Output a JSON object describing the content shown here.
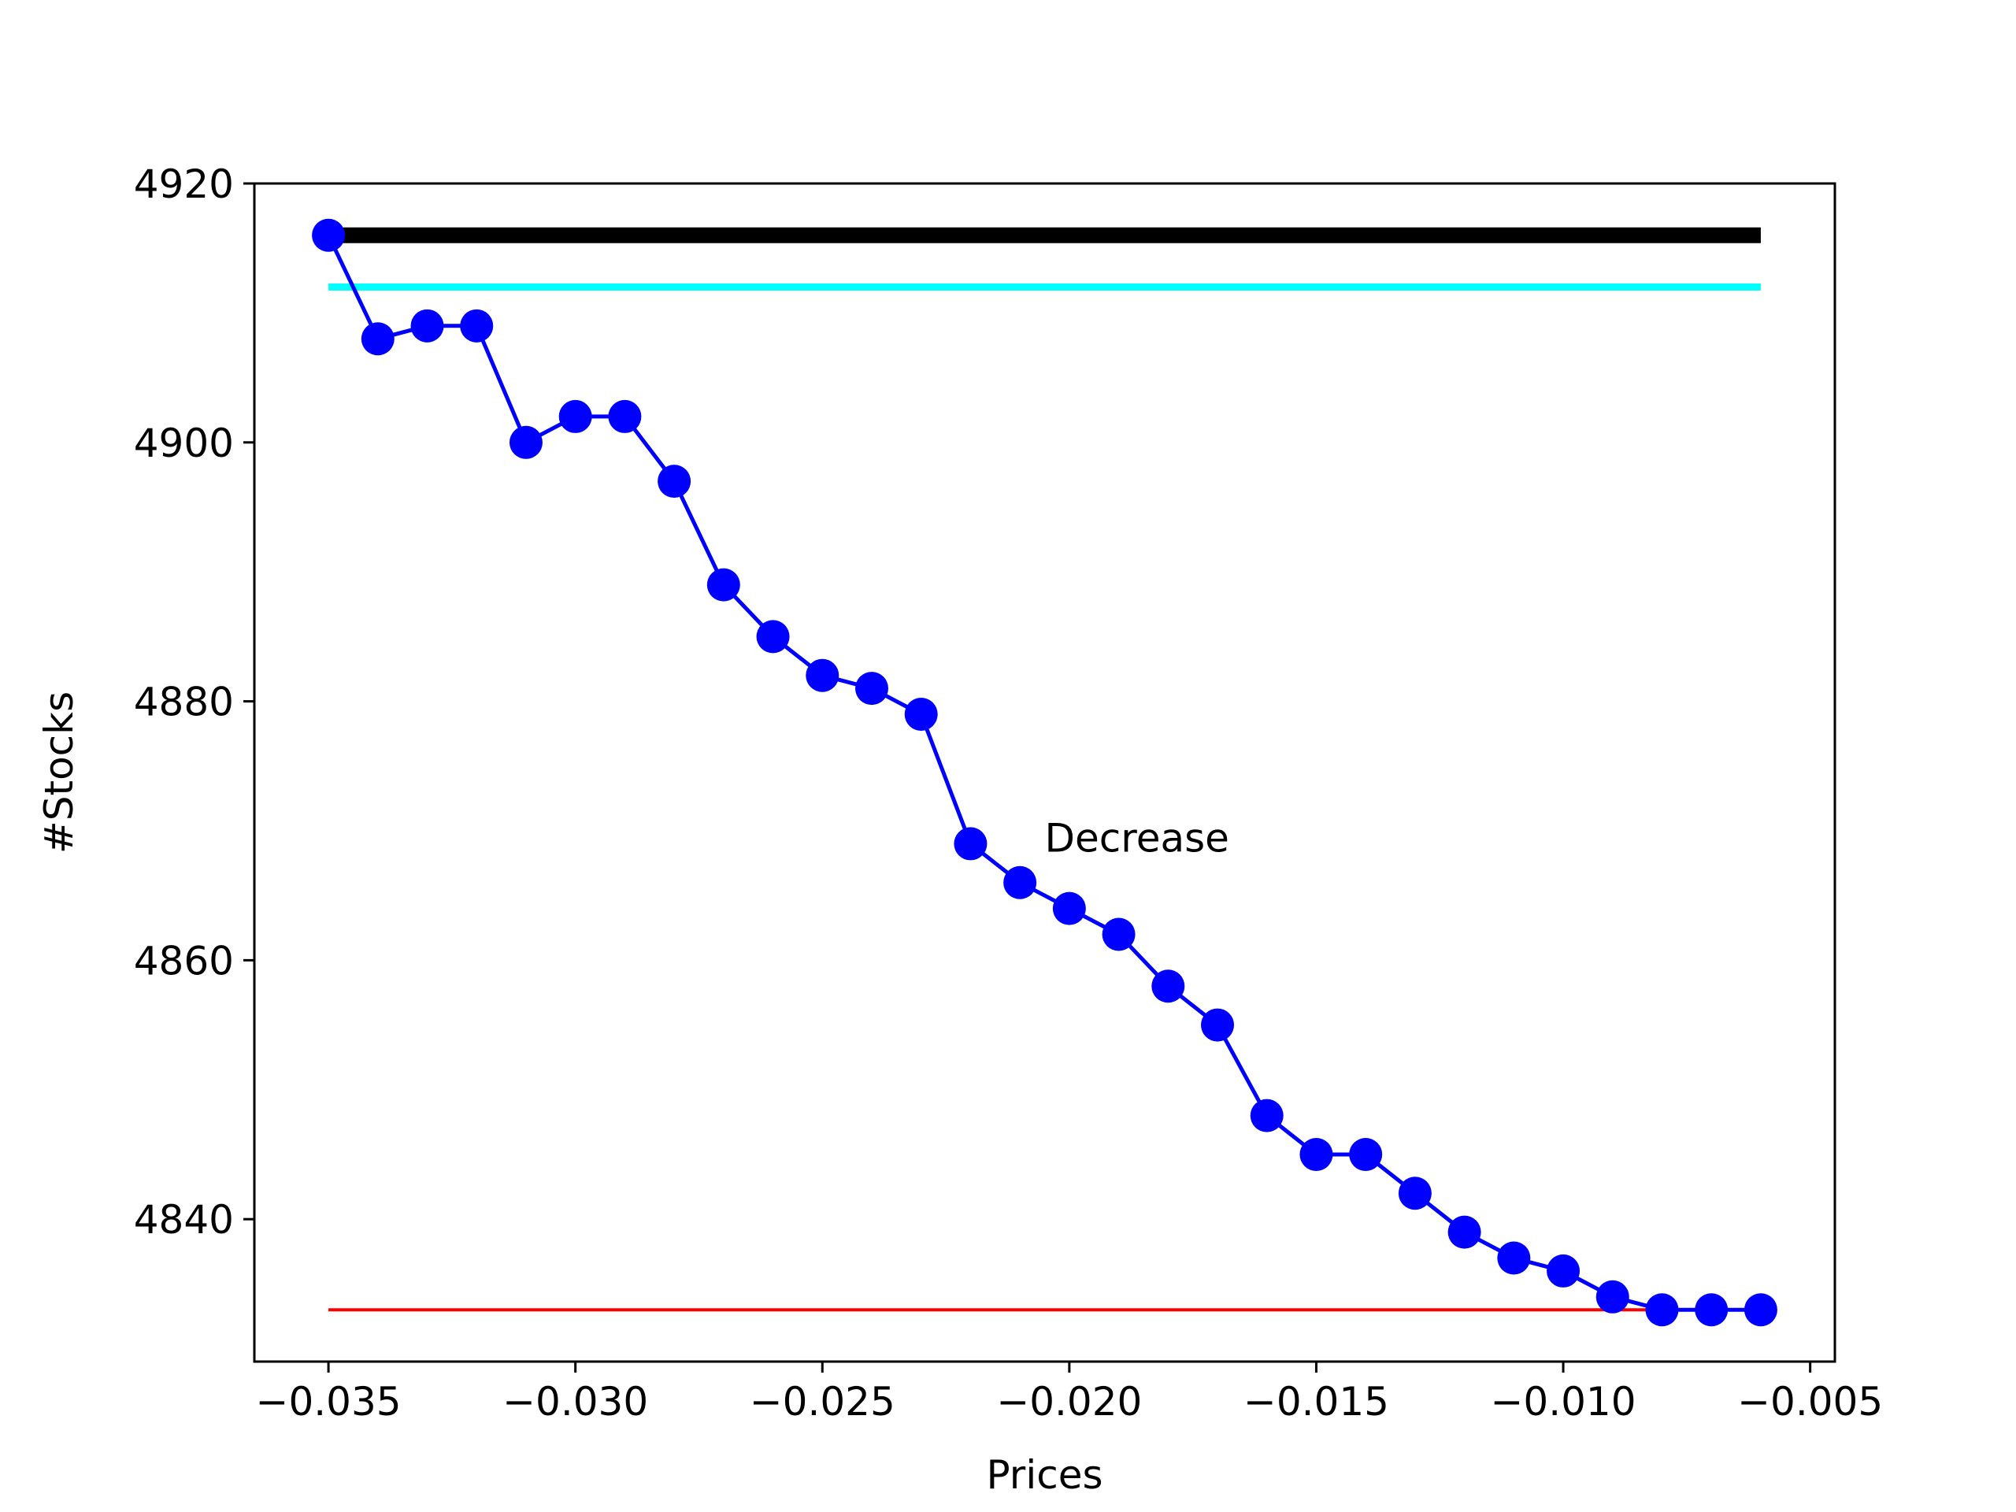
{
  "chart_data": {
    "type": "line",
    "xlabel": "Prices",
    "ylabel": "#Stocks",
    "xlim": [
      -0.0365,
      -0.0045
    ],
    "ylim": [
      4829,
      4920
    ],
    "xticks": [
      -0.035,
      -0.03,
      -0.025,
      -0.02,
      -0.015,
      -0.01,
      -0.005
    ],
    "xtick_labels": [
      "−0.035",
      "−0.030",
      "−0.025",
      "−0.020",
      "−0.015",
      "−0.010",
      "−0.005"
    ],
    "yticks": [
      4840,
      4860,
      4880,
      4900,
      4920
    ],
    "ytick_labels": [
      "4840",
      "4860",
      "4880",
      "4900",
      "4920"
    ],
    "grid": false,
    "series": [
      {
        "color": "#0000ff",
        "marker": "circle",
        "x": [
          -0.035,
          -0.034,
          -0.033,
          -0.032,
          -0.031,
          -0.03,
          -0.029,
          -0.028,
          -0.027,
          -0.026,
          -0.025,
          -0.024,
          -0.023,
          -0.022,
          -0.021,
          -0.02,
          -0.019,
          -0.018,
          -0.017,
          -0.016,
          -0.015,
          -0.014,
          -0.013,
          -0.012,
          -0.011,
          -0.01,
          -0.009,
          -0.008,
          -0.007,
          -0.006
        ],
        "y": [
          4916,
          4908,
          4909,
          4909,
          4900,
          4902,
          4902,
          4897,
          4889,
          4885,
          4882,
          4881,
          4879,
          4869,
          4866,
          4864,
          4862,
          4858,
          4855,
          4848,
          4845,
          4845,
          4842,
          4839,
          4837,
          4836,
          4834,
          4833,
          4833,
          4833
        ]
      }
    ],
    "reference_lines": [
      {
        "color": "#000000",
        "y": 4916,
        "x_start": -0.035,
        "x_end": -0.006,
        "weight": "thick"
      },
      {
        "color": "#00ffff",
        "y": 4912,
        "x_start": -0.035,
        "x_end": -0.006,
        "weight": "medium"
      },
      {
        "color": "#ff0000",
        "y": 4833,
        "x_start": -0.035,
        "x_end": -0.008,
        "weight": "thin"
      }
    ],
    "annotations": [
      {
        "text": "Decrease",
        "x": -0.0205,
        "y": 4869
      }
    ]
  }
}
